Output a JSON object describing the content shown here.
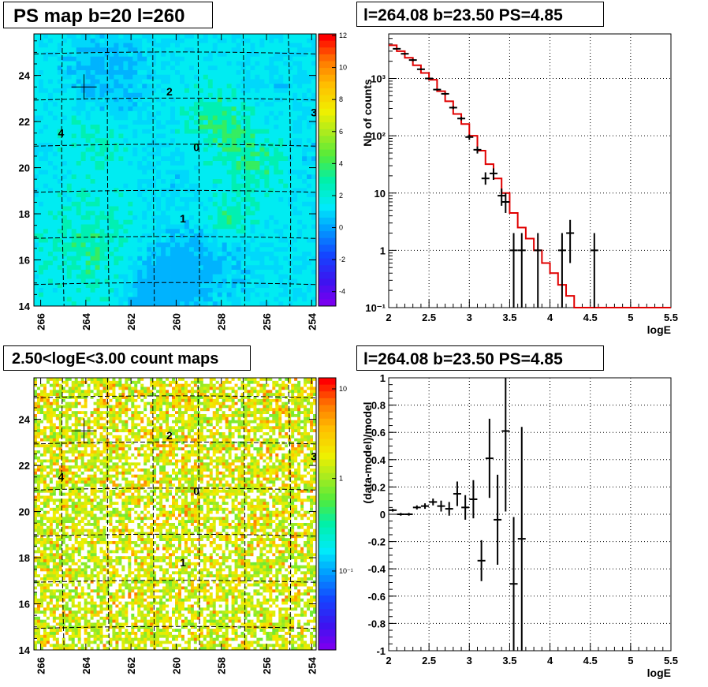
{
  "panels": {
    "ps_map": {
      "title": "PS map b=20 l=260",
      "x_ticks": [
        "266",
        "264",
        "262",
        "260",
        "258",
        "256",
        "254"
      ],
      "y_ticks": [
        "14",
        "16",
        "18",
        "20",
        "22",
        "24"
      ],
      "palette_ticks": [
        "12",
        "10",
        "8",
        "6",
        "4",
        "2",
        "0",
        "-2",
        "-4"
      ],
      "source_labels": [
        "0",
        "1",
        "2",
        "3",
        "4"
      ]
    },
    "count_map": {
      "title": "2.50<logE<3.00 count maps",
      "x_ticks": [
        "266",
        "264",
        "262",
        "260",
        "258",
        "256",
        "254"
      ],
      "y_ticks": [
        "14",
        "16",
        "18",
        "20",
        "22",
        "24"
      ],
      "palette_ticks": [
        "10",
        "1",
        "10⁻¹"
      ],
      "source_labels": [
        "0",
        "1",
        "2",
        "3",
        "4"
      ]
    },
    "spectrum": {
      "title": "l=264.08 b=23.50 PS=4.85"
    },
    "ratio": {
      "title": "l=264.08 b=23.50 PS=4.85"
    }
  },
  "chart_data": [
    {
      "type": "heatmap",
      "title": "PS map b=20 l=260",
      "xlim": [
        266.3,
        253.8
      ],
      "ylim": [
        14,
        25.8
      ],
      "zlim": [
        -5,
        12
      ],
      "palette_ticks": [
        12,
        10,
        8,
        6,
        4,
        2,
        0,
        -2,
        -4
      ],
      "sources": [
        {
          "label": "0",
          "l": 259.1,
          "b": 20.9
        },
        {
          "label": "1",
          "l": 259.7,
          "b": 17.8
        },
        {
          "label": "2",
          "l": 260.3,
          "b": 23.3
        },
        {
          "label": "3",
          "l": 253.9,
          "b": 22.4
        },
        {
          "label": "4",
          "l": 265.1,
          "b": 21.5
        }
      ],
      "marker": {
        "l": 264.08,
        "b": 23.5
      }
    },
    {
      "type": "heatmap",
      "title": "2.50<logE<3.00 count maps",
      "xlim": [
        266.3,
        253.8
      ],
      "ylim": [
        14,
        25.8
      ],
      "zscale": "log",
      "palette_ticks": [
        "10",
        "1",
        "10⁻¹"
      ],
      "sources": [
        {
          "label": "0",
          "l": 259.1,
          "b": 20.9
        },
        {
          "label": "1",
          "l": 259.7,
          "b": 17.8
        },
        {
          "label": "2",
          "l": 260.3,
          "b": 23.3
        },
        {
          "label": "3",
          "l": 253.9,
          "b": 22.4
        },
        {
          "label": "4",
          "l": 265.1,
          "b": 21.5
        }
      ],
      "marker": {
        "l": 264.08,
        "b": 23.5
      }
    },
    {
      "type": "line",
      "title": "l=264.08 b=23.50 PS=4.85",
      "xlabel": "logE",
      "ylabel": "Nb of counts",
      "xlim": [
        2,
        5.5
      ],
      "ylim": [
        0.1,
        6000
      ],
      "yscale": "log",
      "x_ticks": [
        2,
        2.5,
        3,
        3.5,
        4,
        4.5,
        5,
        5.5
      ],
      "y_ticks": [
        "10⁻¹",
        "1",
        "10",
        "10²",
        "10³"
      ],
      "grid": true,
      "series": [
        {
          "role": "model (red histogram)",
          "bin_edges": [
            2.0,
            2.1,
            2.2,
            2.3,
            2.4,
            2.5,
            2.6,
            2.7,
            2.8,
            2.9,
            3.0,
            3.1,
            3.2,
            3.3,
            3.4,
            3.5,
            3.6,
            3.7,
            3.8,
            3.9,
            4.0,
            4.1,
            4.2,
            4.3,
            4.4,
            4.5,
            4.6,
            4.7,
            4.8,
            4.9,
            5.0,
            5.1,
            5.2,
            5.3,
            5.4,
            5.5
          ],
          "values": [
            3800,
            3000,
            2300,
            1700,
            1250,
            950,
            600,
            400,
            240,
            160,
            100,
            55,
            32,
            18,
            10,
            4.5,
            2.5,
            1.6,
            1.0,
            0.6,
            0.4,
            0.25,
            0.16,
            0.1,
            0.1,
            0.1,
            0.1,
            0.1,
            0.1,
            0.1,
            0.1,
            0.1,
            0.1,
            0.1,
            0.1
          ]
        },
        {
          "role": "data (black crosses)",
          "points": [
            {
              "x": 2.1,
              "y": 3300,
              "lo": 3200,
              "hi": 3400
            },
            {
              "x": 2.2,
              "y": 2700,
              "lo": 2600,
              "hi": 2800
            },
            {
              "x": 2.3,
              "y": 2100,
              "lo": 2000,
              "hi": 2200
            },
            {
              "x": 2.4,
              "y": 1450,
              "lo": 1400,
              "hi": 1500
            },
            {
              "x": 2.5,
              "y": 1000,
              "lo": 965,
              "hi": 1035
            },
            {
              "x": 2.6,
              "y": 640,
              "lo": 615,
              "hi": 665
            },
            {
              "x": 2.7,
              "y": 540,
              "lo": 515,
              "hi": 565
            },
            {
              "x": 2.8,
              "y": 310,
              "lo": 292,
              "hi": 328
            },
            {
              "x": 2.9,
              "y": 200,
              "lo": 186,
              "hi": 214
            },
            {
              "x": 3.0,
              "y": 95,
              "lo": 85,
              "hi": 105
            },
            {
              "x": 3.1,
              "y": 57,
              "lo": 49,
              "hi": 65
            },
            {
              "x": 3.2,
              "y": 18,
              "lo": 14,
              "hi": 23
            },
            {
              "x": 3.3,
              "y": 22,
              "lo": 17,
              "hi": 27
            },
            {
              "x": 3.4,
              "y": 9,
              "lo": 6,
              "hi": 12
            },
            {
              "x": 3.45,
              "y": 7,
              "lo": 4.5,
              "hi": 10
            },
            {
              "x": 3.55,
              "y": 1,
              "lo": 0.1,
              "hi": 2
            },
            {
              "x": 3.65,
              "y": 1,
              "lo": 0.1,
              "hi": 2
            },
            {
              "x": 3.85,
              "y": 1,
              "lo": 0.1,
              "hi": 2
            },
            {
              "x": 4.15,
              "y": 1,
              "lo": 0.1,
              "hi": 2
            },
            {
              "x": 4.25,
              "y": 2,
              "lo": 0.6,
              "hi": 3.4
            },
            {
              "x": 4.55,
              "y": 1,
              "lo": 0.1,
              "hi": 2
            }
          ]
        }
      ]
    },
    {
      "type": "scatter",
      "title": "l=264.08 b=23.50 PS=4.85",
      "xlabel": "logE",
      "ylabel": "(data-model)/model",
      "xlim": [
        2,
        5.5
      ],
      "ylim": [
        -1,
        1
      ],
      "x_ticks": [
        2,
        2.5,
        3,
        3.5,
        4,
        4.5,
        5,
        5.5
      ],
      "y_ticks": [
        -1,
        -0.8,
        -0.6,
        -0.4,
        -0.2,
        0,
        0.2,
        0.4,
        0.6,
        0.8,
        1
      ],
      "grid": true,
      "points": [
        {
          "x": 2.05,
          "y": 0.03,
          "err": 0.01
        },
        {
          "x": 2.15,
          "y": 0.0,
          "err": 0.01
        },
        {
          "x": 2.25,
          "y": 0.0,
          "err": 0.01
        },
        {
          "x": 2.35,
          "y": 0.05,
          "err": 0.015
        },
        {
          "x": 2.45,
          "y": 0.06,
          "err": 0.02
        },
        {
          "x": 2.55,
          "y": 0.09,
          "err": 0.025
        },
        {
          "x": 2.65,
          "y": 0.06,
          "err": 0.04
        },
        {
          "x": 2.75,
          "y": 0.04,
          "err": 0.05
        },
        {
          "x": 2.85,
          "y": 0.15,
          "err": 0.09
        },
        {
          "x": 2.95,
          "y": 0.05,
          "err": 0.09
        },
        {
          "x": 3.05,
          "y": 0.11,
          "err": 0.14
        },
        {
          "x": 3.15,
          "y": -0.34,
          "err": 0.15
        },
        {
          "x": 3.25,
          "y": 0.41,
          "err": 0.29
        },
        {
          "x": 3.35,
          "y": -0.04,
          "err": 0.33
        },
        {
          "x": 3.45,
          "y": 0.61,
          "err": 0.59
        },
        {
          "x": 3.55,
          "y": -0.51,
          "err": 0.49
        },
        {
          "x": 3.65,
          "y": -0.18,
          "err": 0.82
        }
      ]
    }
  ]
}
